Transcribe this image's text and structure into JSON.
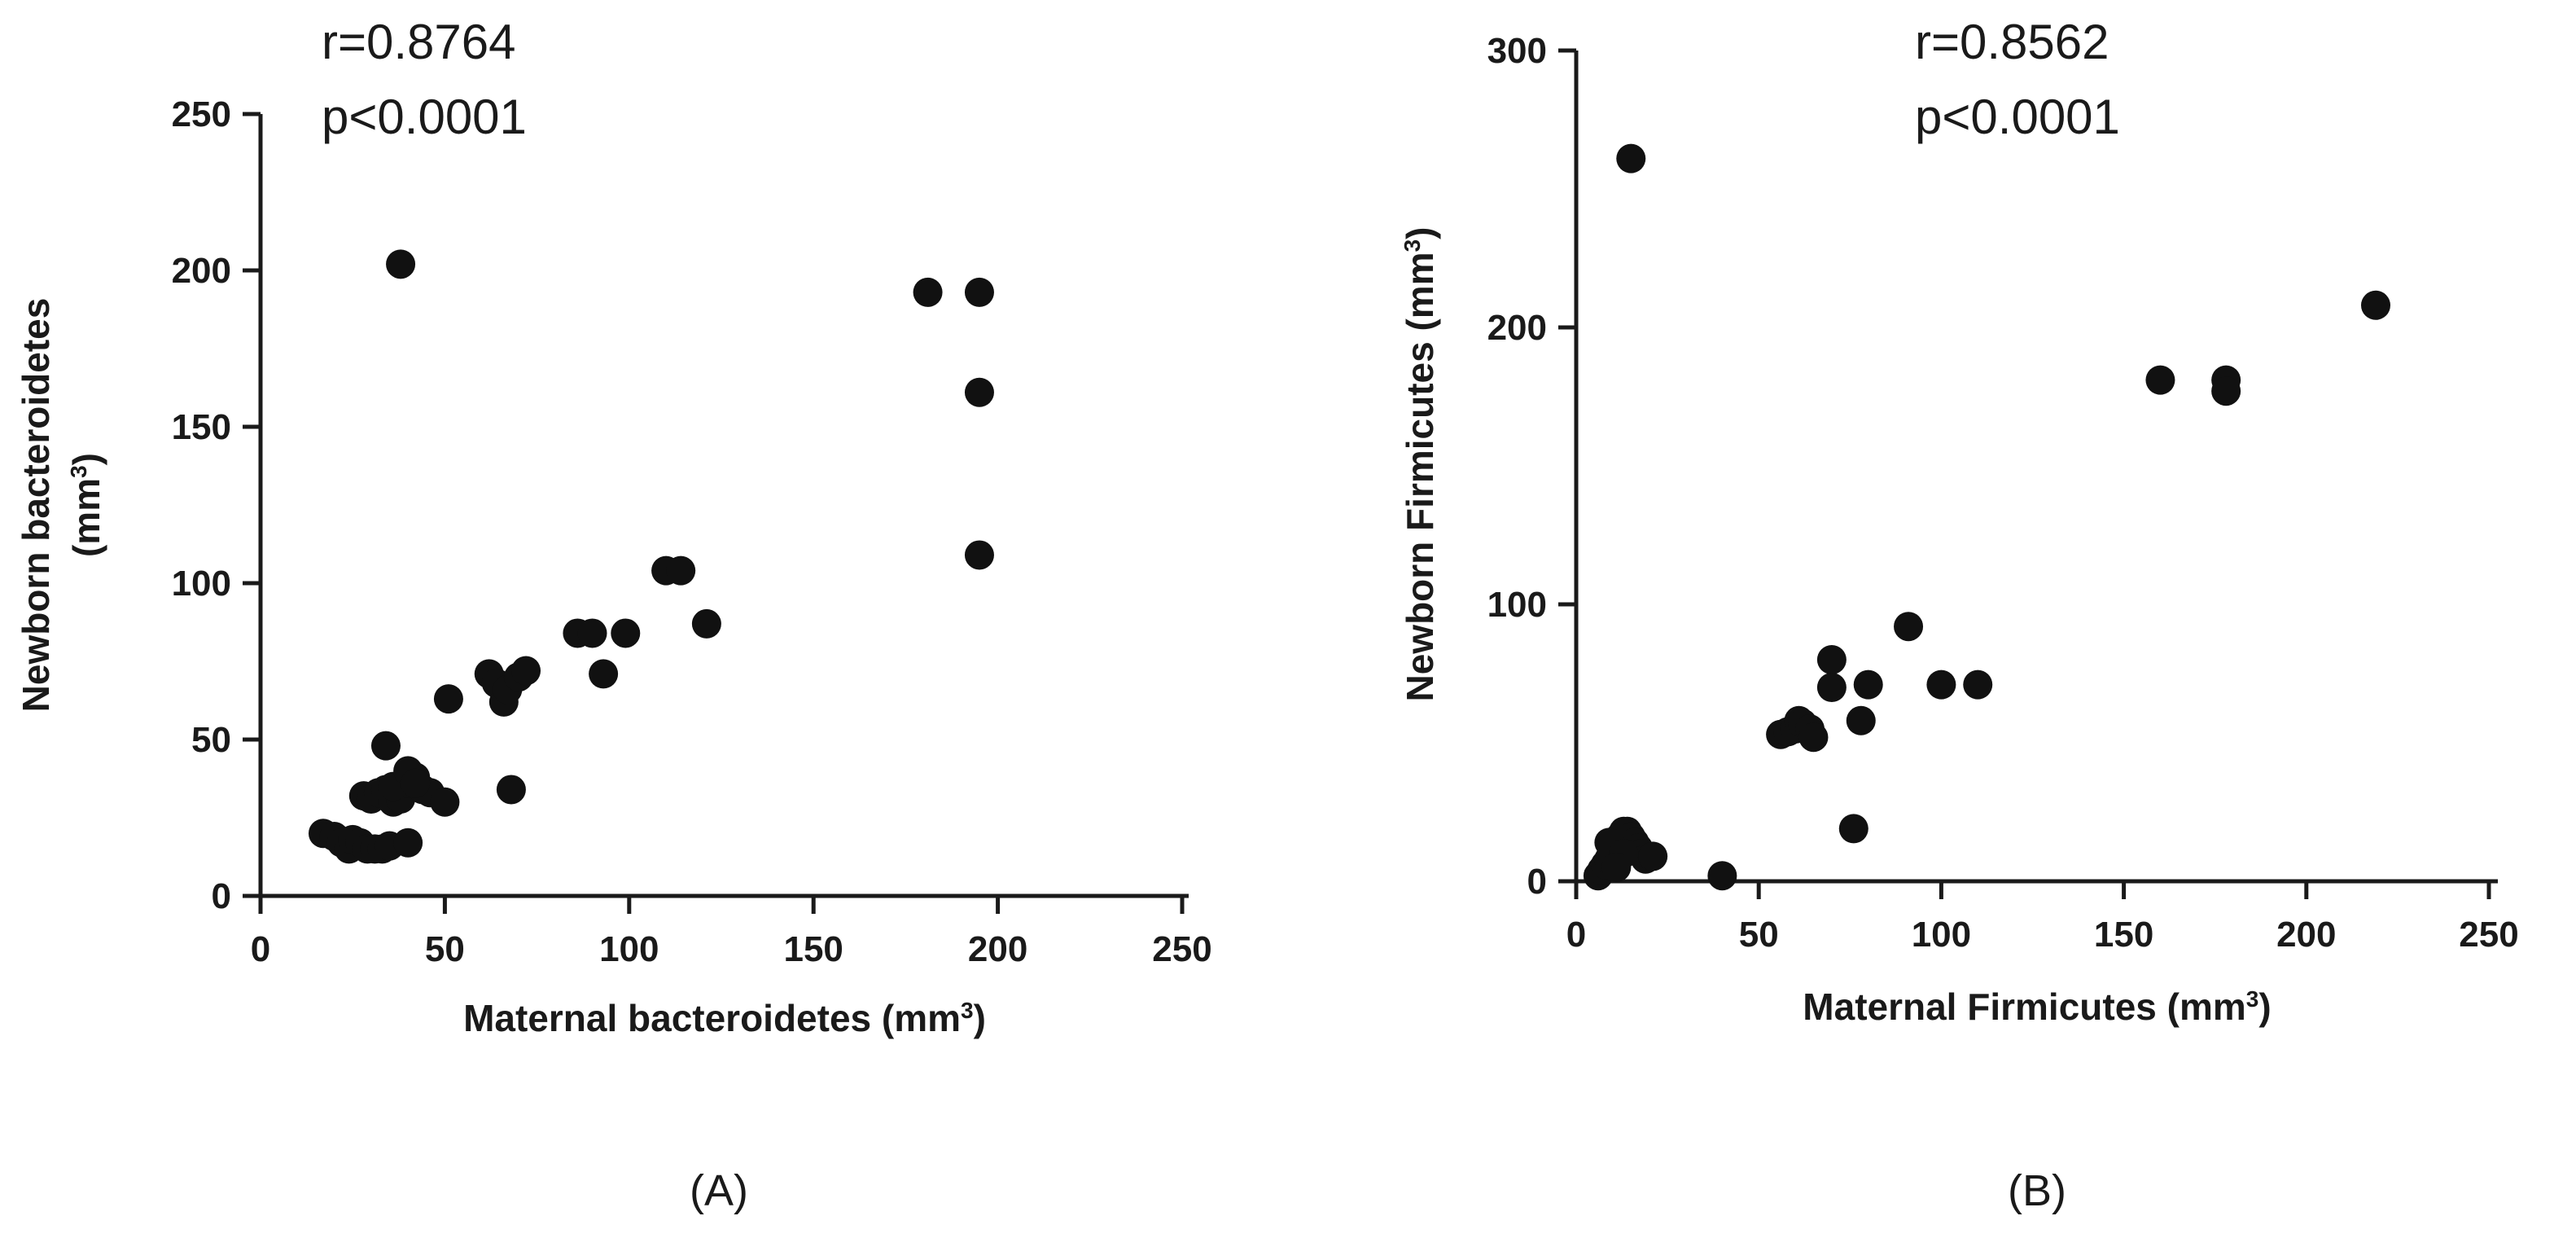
{
  "chart_data": [
    {
      "type": "scatter",
      "panel_label": "(A)",
      "annotation_line1": "r=0.8764",
      "annotation_line2": "p<0.0001",
      "xlabel": "Maternal bacteroidetes (mm",
      "xlabel_sup": "3",
      "xlabel_end": ")",
      "ylabel_line1": "Newborn bacteroidetes",
      "ylabel_line2": "(mm",
      "ylabel_sup": "3",
      "ylabel_end": ")",
      "xlim": [
        0,
        250
      ],
      "ylim": [
        0,
        250
      ],
      "xticks": [
        0,
        50,
        100,
        150,
        200,
        250
      ],
      "yticks": [
        0,
        50,
        100,
        150,
        200,
        250
      ],
      "points": [
        [
          17,
          20
        ],
        [
          20,
          19
        ],
        [
          22,
          17
        ],
        [
          24,
          15
        ],
        [
          25,
          18
        ],
        [
          27,
          17
        ],
        [
          29,
          15
        ],
        [
          31,
          15
        ],
        [
          33,
          15
        ],
        [
          35,
          16
        ],
        [
          28,
          32
        ],
        [
          30,
          31
        ],
        [
          32,
          33
        ],
        [
          34,
          34
        ],
        [
          36,
          30
        ],
        [
          38,
          31
        ],
        [
          40,
          36
        ],
        [
          42,
          38
        ],
        [
          44,
          34
        ],
        [
          46,
          33
        ],
        [
          36,
          35
        ],
        [
          34,
          48
        ],
        [
          40,
          40
        ],
        [
          42,
          36
        ],
        [
          40,
          17
        ],
        [
          50,
          30
        ],
        [
          51,
          63
        ],
        [
          38,
          202
        ],
        [
          62,
          71
        ],
        [
          64,
          68
        ],
        [
          66,
          62
        ],
        [
          67,
          66
        ],
        [
          68,
          34
        ],
        [
          70,
          70
        ],
        [
          72,
          72
        ],
        [
          86,
          84
        ],
        [
          90,
          84
        ],
        [
          93,
          71
        ],
        [
          99,
          84
        ],
        [
          110,
          104
        ],
        [
          114,
          104
        ],
        [
          121,
          87
        ],
        [
          181,
          193
        ],
        [
          195,
          193
        ],
        [
          195,
          161
        ],
        [
          195,
          109
        ]
      ]
    },
    {
      "type": "scatter",
      "panel_label": "(B)",
      "annotation_line1": "r=0.8562",
      "annotation_line2": "p<0.0001",
      "xlabel": "Maternal Firmicutes (mm",
      "xlabel_sup": "3",
      "xlabel_end": ")",
      "ylabel_line1": "Newborn Firmicutes (mm",
      "ylabel_sup": "3",
      "ylabel_end": ")",
      "xlim": [
        0,
        250
      ],
      "ylim": [
        0,
        300
      ],
      "xticks": [
        0,
        50,
        100,
        150,
        200,
        250
      ],
      "yticks": [
        0,
        100,
        200,
        300
      ],
      "points": [
        [
          6,
          2
        ],
        [
          7,
          4
        ],
        [
          8,
          6
        ],
        [
          9,
          8
        ],
        [
          10,
          10
        ],
        [
          11,
          12
        ],
        [
          12,
          16
        ],
        [
          13,
          18
        ],
        [
          14,
          18
        ],
        [
          15,
          16
        ],
        [
          16,
          14
        ],
        [
          17,
          12
        ],
        [
          18,
          10
        ],
        [
          19,
          8
        ],
        [
          21,
          9
        ],
        [
          9,
          14
        ],
        [
          13,
          10
        ],
        [
          11,
          5
        ],
        [
          15,
          261
        ],
        [
          40,
          2
        ],
        [
          56,
          53
        ],
        [
          58,
          54
        ],
        [
          60,
          55
        ],
        [
          61,
          58
        ],
        [
          62,
          57
        ],
        [
          64,
          55
        ],
        [
          65,
          52
        ],
        [
          70,
          80
        ],
        [
          70,
          70
        ],
        [
          76,
          19
        ],
        [
          78,
          58
        ],
        [
          80,
          71
        ],
        [
          91,
          92
        ],
        [
          100,
          71
        ],
        [
          110,
          71
        ],
        [
          160,
          181
        ],
        [
          178,
          181
        ],
        [
          178,
          177
        ],
        [
          219,
          208
        ]
      ]
    }
  ]
}
